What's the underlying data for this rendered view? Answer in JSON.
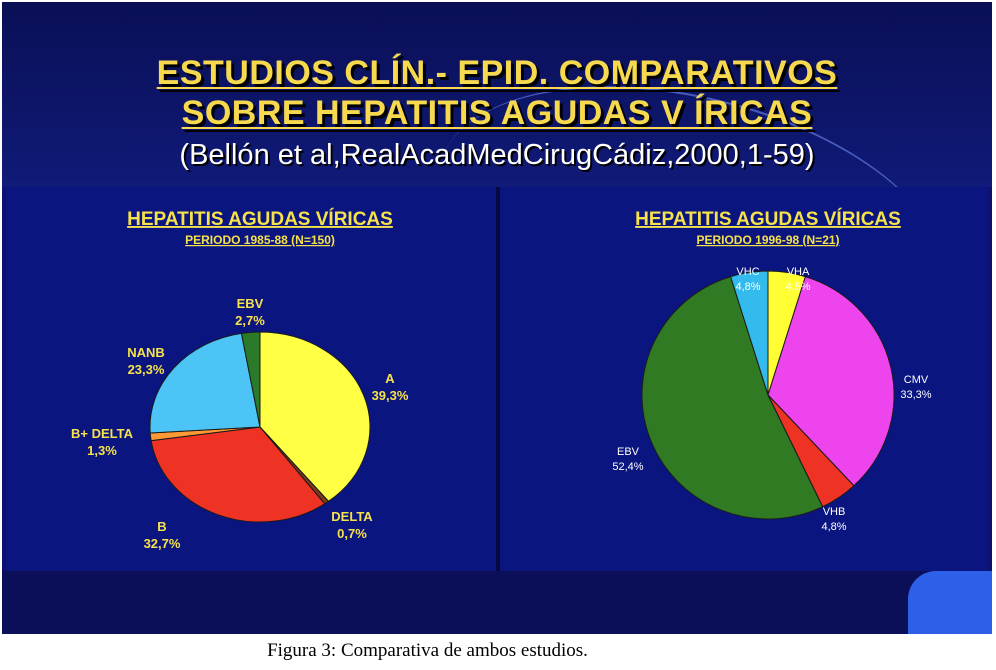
{
  "slide": {
    "title_line_1": "ESTUDIOS CLÍN.- EPID. COMPARATIVOS",
    "title_line_2": "SOBRE HEPATITIS AGUDAS V ÍRICAS",
    "citation": "(Bellón et al,RealAcadMedCirugCádiz,2000,1-59)"
  },
  "caption": "Figura 3: Comparativa de ambos estudios.",
  "chart_data": [
    {
      "type": "pie",
      "title": "HEPATITIS AGUDAS VÍRICAS",
      "subtitle": "PERIODO 1985-88 (N=150)",
      "slices": [
        {
          "label": "A",
          "value_text": "39,3%",
          "value": 39.3,
          "color": "#ffff44"
        },
        {
          "label": "DELTA",
          "value_text": "0,7%",
          "value": 0.7,
          "color": "#7a3a1a"
        },
        {
          "label": "B",
          "value_text": "32,7%",
          "value": 32.7,
          "color": "#ee3324"
        },
        {
          "label": "B+ DELTA",
          "value_text": "1,3%",
          "value": 1.3,
          "color": "#ff9933"
        },
        {
          "label": "NANB",
          "value_text": "23,3%",
          "value": 23.3,
          "color": "#4cc4f6"
        },
        {
          "label": "EBV",
          "value_text": "2,7%",
          "value": 2.7,
          "color": "#2a7a2a"
        }
      ]
    },
    {
      "type": "pie",
      "title": "HEPATITIS AGUDAS VÍRICAS",
      "subtitle": "PERIODO 1996-98 (N=21)",
      "slices": [
        {
          "label": "VHA",
          "value_text": "4,8%",
          "value": 4.8,
          "color": "#ffff33"
        },
        {
          "label": "CMV",
          "value_text": "33,3%",
          "value": 33.3,
          "color": "#ee44ee"
        },
        {
          "label": "VHB",
          "value_text": "4,8%",
          "value": 4.8,
          "color": "#ee3324"
        },
        {
          "label": "EBV",
          "value_text": "52,4%",
          "value": 52.4,
          "color": "#2f7a22"
        },
        {
          "label": "VHC",
          "value_text": "4,8%",
          "value": 4.8,
          "color": "#33bbee"
        }
      ]
    }
  ]
}
